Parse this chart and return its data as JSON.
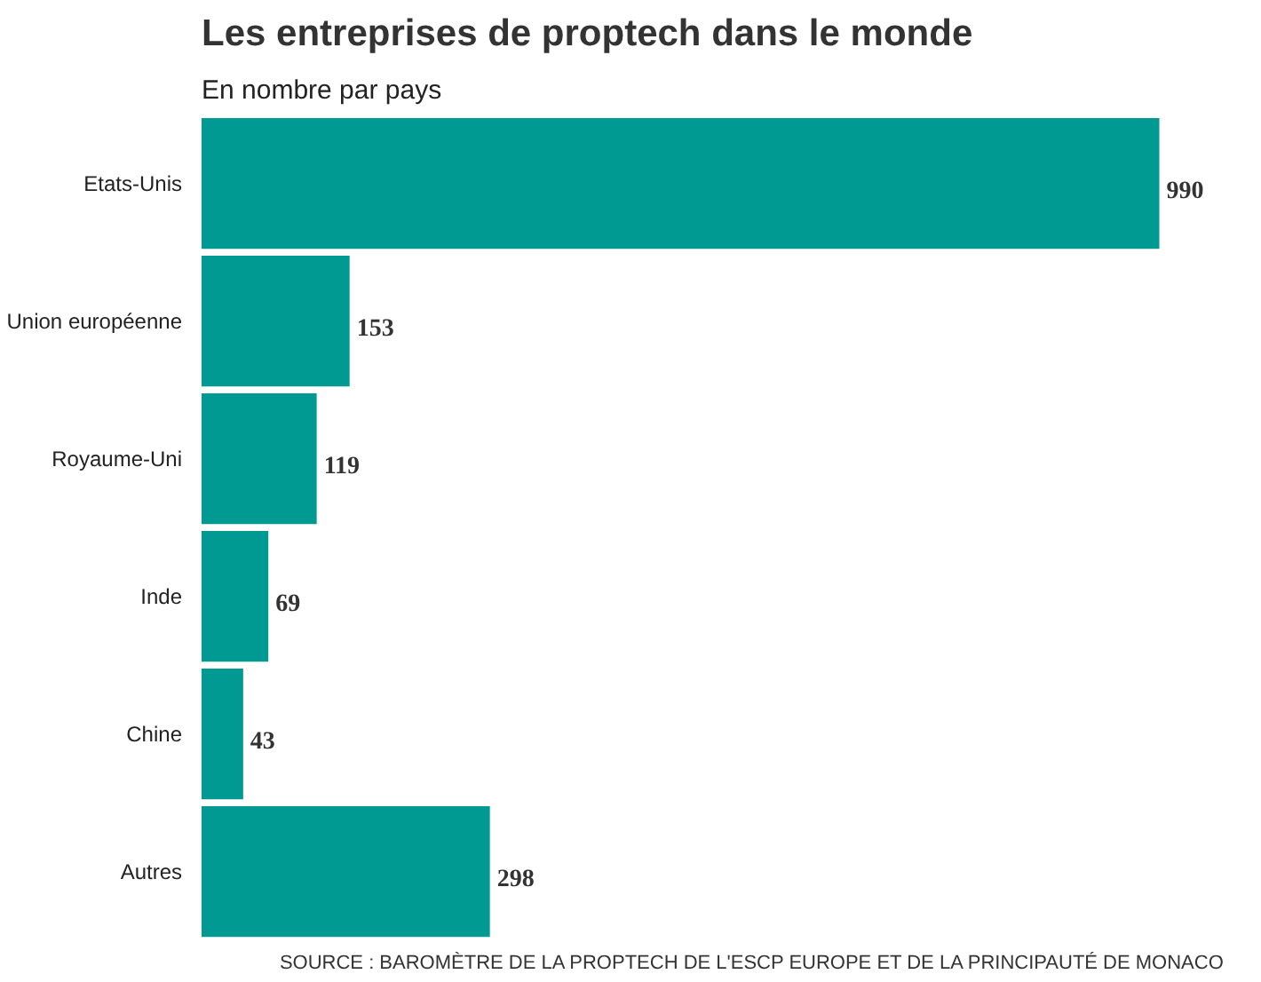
{
  "chart_data": {
    "type": "bar",
    "orientation": "horizontal",
    "title": "Les entreprises de proptech dans le monde",
    "subtitle": "En nombre par pays",
    "categories": [
      "Etats-Unis",
      "Union européenne",
      "Royaume-Uni",
      "Inde",
      "Chine",
      "Autres"
    ],
    "values": [
      990,
      153,
      119,
      69,
      43,
      298
    ],
    "color": "#009a93",
    "data_labels": true,
    "grid": false,
    "annotations": [
      "SOURCE : BAROMÈTRE DE LA PROPTECH DE L'ESCP EUROPE ET DE LA PRINCIPAUTÉ DE MONACO"
    ]
  }
}
